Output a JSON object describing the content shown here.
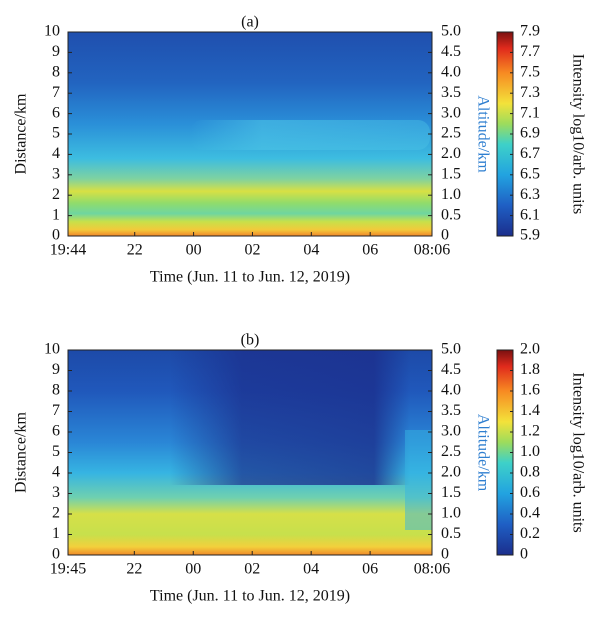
{
  "chart_data": [
    {
      "type": "heatmap",
      "title": "(a)",
      "xlabel": "Time (Jun. 11 to Jun. 12, 2019)",
      "ylabel": "Distance/km",
      "y2label": "Altitude/km",
      "colorbar_label": "Intensity log10/arb. units",
      "xlim": [
        0,
        742
      ],
      "xticks": [
        {
          "value": 0,
          "label": "19:44"
        },
        {
          "value": 136,
          "label": "22"
        },
        {
          "value": 256,
          "label": "00"
        },
        {
          "value": 376,
          "label": "02"
        },
        {
          "value": 496,
          "label": "04"
        },
        {
          "value": 616,
          "label": "06"
        },
        {
          "value": 742,
          "label": "08:06"
        }
      ],
      "ylim": [
        0,
        10
      ],
      "yticks": [
        0,
        1,
        2,
        3,
        4,
        5,
        6,
        7,
        8,
        9,
        10
      ],
      "y2lim": [
        0,
        5
      ],
      "y2ticks": [
        0,
        0.5,
        {
          "value": 1,
          "label": "1.0"
        },
        1.5,
        {
          "value": 2,
          "label": "2.0"
        },
        2.5,
        {
          "value": 3,
          "label": "3.0"
        },
        3.5,
        {
          "value": 4,
          "label": "4.0"
        },
        4.5,
        {
          "value": 5,
          "label": "5.0"
        }
      ],
      "clim": [
        5.9,
        7.9
      ],
      "cticks": [
        5.9,
        6.1,
        6.3,
        6.5,
        6.7,
        6.9,
        7.1,
        7.3,
        7.5,
        7.7,
        7.9
      ]
    },
    {
      "type": "heatmap",
      "title": "(b)",
      "xlabel": "Time (Jun. 11 to Jun. 12, 2019)",
      "ylabel": "Distance/km",
      "y2label": "Altitude/km",
      "colorbar_label": "Intensity log10/arb. units",
      "xlim": [
        0,
        741
      ],
      "xticks": [
        {
          "value": 0,
          "label": "19:45"
        },
        {
          "value": 135,
          "label": "22"
        },
        {
          "value": 255,
          "label": "00"
        },
        {
          "value": 375,
          "label": "02"
        },
        {
          "value": 495,
          "label": "04"
        },
        {
          "value": 615,
          "label": "06"
        },
        {
          "value": 741,
          "label": "08:06"
        }
      ],
      "ylim": [
        0,
        10
      ],
      "yticks": [
        0,
        1,
        2,
        3,
        4,
        5,
        6,
        7,
        8,
        9,
        10
      ],
      "y2lim": [
        0,
        5
      ],
      "y2ticks": [
        0,
        0.5,
        {
          "value": 1,
          "label": "1.0"
        },
        1.5,
        {
          "value": 2,
          "label": "2.0"
        },
        2.5,
        {
          "value": 3,
          "label": "3.0"
        },
        3.5,
        {
          "value": 4,
          "label": "4.0"
        },
        4.5,
        {
          "value": 5,
          "label": "5.0"
        }
      ],
      "clim": [
        0,
        2
      ],
      "cticks": [
        0,
        0.2,
        0.4,
        0.6,
        0.8,
        {
          "value": 1,
          "label": "1.0"
        },
        1.2,
        1.4,
        1.6,
        1.8,
        {
          "value": 2,
          "label": "2.0"
        }
      ]
    }
  ]
}
